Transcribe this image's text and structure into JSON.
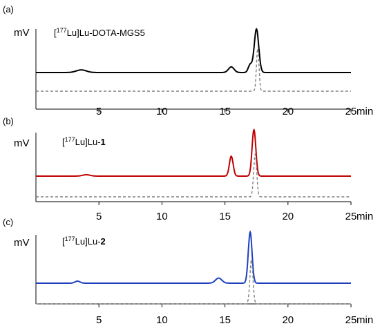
{
  "chart_data": [
    {
      "type": "line",
      "panel": "(a)",
      "compound": {
        "prefix": "[",
        "sup": "177",
        "main": "Lu]Lu-DOTA-MGS5",
        "bold": ""
      },
      "ylabel": "mV",
      "xunit": "min",
      "xlim": [
        0,
        25
      ],
      "xticks": [
        5,
        10,
        15,
        20,
        25
      ],
      "grid": false,
      "series": [
        {
          "style": "solid",
          "color": "#000000",
          "peaks": [
            {
              "x": 3.6,
              "h": 0.06,
              "w": 0.4
            },
            {
              "x": 15.5,
              "h": 0.13,
              "w": 0.22
            },
            {
              "x": 17.0,
              "h": 0.18,
              "w": 0.15
            },
            {
              "x": 17.5,
              "h": 1.0,
              "w": 0.18
            }
          ]
        },
        {
          "style": "dashed",
          "color": "#808080",
          "peaks": [
            {
              "x": 17.6,
              "h": 1.0,
              "w": 0.1
            }
          ]
        }
      ]
    },
    {
      "type": "line",
      "panel": "(b)",
      "compound": {
        "prefix": "[",
        "sup": "177",
        "main": "Lu]Lu-",
        "bold": "1"
      },
      "ylabel": "mV",
      "xunit": "min",
      "xlim": [
        0,
        25
      ],
      "xticks": [
        5,
        10,
        15,
        20,
        25
      ],
      "grid": false,
      "series": [
        {
          "style": "solid",
          "color": "#c00000",
          "peaks": [
            {
              "x": 4.0,
              "h": 0.03,
              "w": 0.3
            },
            {
              "x": 15.5,
              "h": 0.43,
              "w": 0.15
            },
            {
              "x": 17.3,
              "h": 1.0,
              "w": 0.15
            }
          ]
        },
        {
          "style": "dashed",
          "color": "#808080",
          "peaks": [
            {
              "x": 17.4,
              "h": 1.0,
              "w": 0.12
            }
          ]
        }
      ]
    },
    {
      "type": "line",
      "panel": "(c)",
      "compound": {
        "prefix": "[",
        "sup": "177",
        "main": "Lu]Lu-",
        "bold": "2"
      },
      "ylabel": "mV",
      "xunit": "min",
      "xlim": [
        0,
        25
      ],
      "xticks": [
        5,
        10,
        15,
        20,
        25
      ],
      "grid": false,
      "series": [
        {
          "style": "solid",
          "color": "#1f3fbf",
          "peaks": [
            {
              "x": 3.3,
              "h": 0.04,
              "w": 0.2
            },
            {
              "x": 14.5,
              "h": 0.1,
              "w": 0.25
            },
            {
              "x": 17.0,
              "h": 1.0,
              "w": 0.15
            }
          ]
        },
        {
          "style": "dashed",
          "color": "#808080",
          "peaks": [
            {
              "x": 17.1,
              "h": 1.0,
              "w": 0.12
            }
          ]
        }
      ]
    }
  ]
}
